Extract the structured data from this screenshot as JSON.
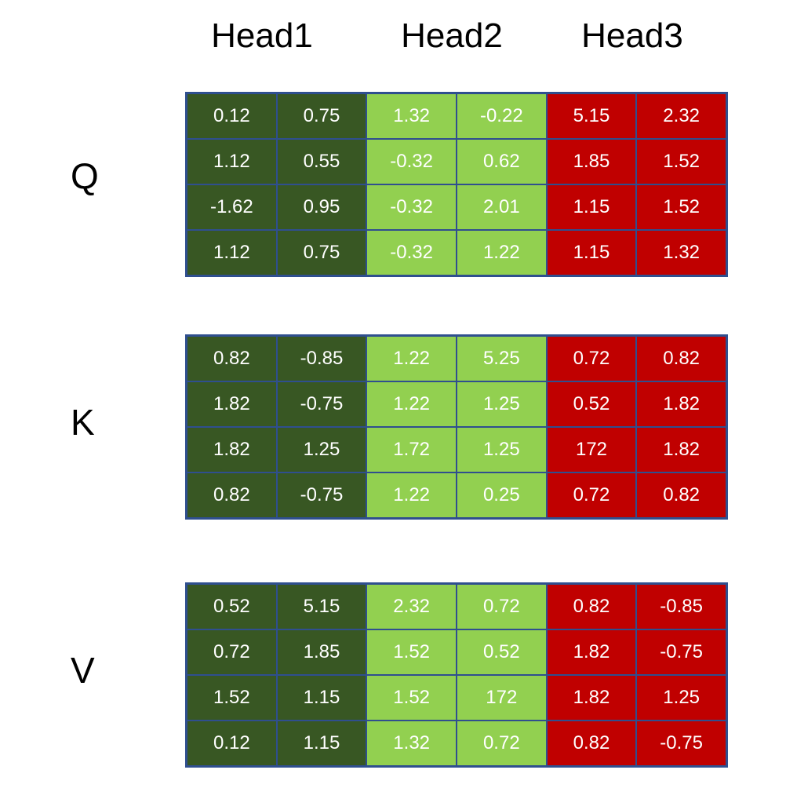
{
  "heads": [
    "Head1",
    "Head2",
    "Head3"
  ],
  "matrices": {
    "q": {
      "label": "Q",
      "rows": [
        [
          "0.12",
          "0.75",
          "1.32",
          "-0.22",
          "5.15",
          "2.32"
        ],
        [
          "1.12",
          "0.55",
          "-0.32",
          "0.62",
          "1.85",
          "1.52"
        ],
        [
          "-1.62",
          "0.95",
          "-0.32",
          "2.01",
          "1.15",
          "1.52"
        ],
        [
          "1.12",
          "0.75",
          "-0.32",
          "1.22",
          "1.15",
          "1.32"
        ]
      ]
    },
    "k": {
      "label": "K",
      "rows": [
        [
          "0.82",
          "-0.85",
          "1.22",
          "5.25",
          "0.72",
          "0.82"
        ],
        [
          "1.82",
          "-0.75",
          "1.22",
          "1.25",
          "0.52",
          "1.82"
        ],
        [
          "1.82",
          "1.25",
          "1.72",
          "1.25",
          "172",
          "1.82"
        ],
        [
          "0.82",
          "-0.75",
          "1.22",
          "0.25",
          "0.72",
          "0.82"
        ]
      ]
    },
    "v": {
      "label": "V",
      "rows": [
        [
          "0.52",
          "5.15",
          "2.32",
          "0.72",
          "0.82",
          "-0.85"
        ],
        [
          "0.72",
          "1.85",
          "1.52",
          "0.52",
          "1.82",
          "-0.75"
        ],
        [
          "1.52",
          "1.15",
          "1.52",
          "172",
          "1.82",
          "1.25"
        ],
        [
          "0.12",
          "1.15",
          "1.32",
          "0.72",
          "0.82",
          "-0.75"
        ]
      ]
    }
  },
  "colors": {
    "head1": "#385723",
    "head2": "#92d050",
    "head3": "#c00000",
    "grid_border": "#2f4f8f",
    "cell_text": "#ffffff"
  }
}
